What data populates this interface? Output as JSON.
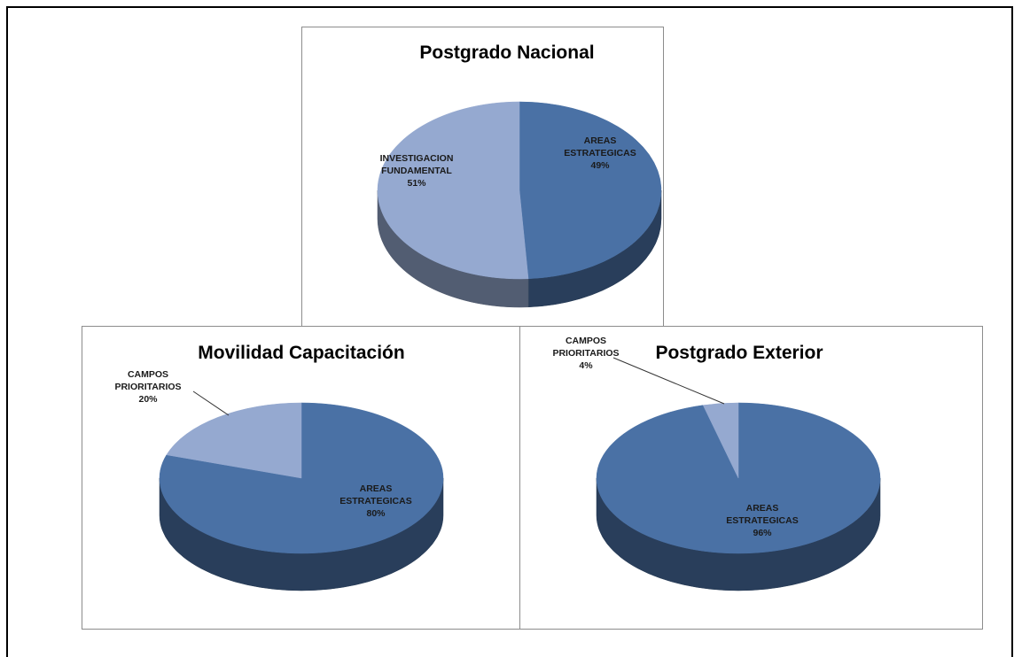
{
  "chart_data": [
    {
      "type": "pie",
      "title": "Postgrado Nacional",
      "categories": [
        "AREAS ESTRATEGICAS",
        "INVESTIGACION FUNDAMENTAL"
      ],
      "values": [
        49,
        51
      ],
      "value_labels": [
        "49%",
        "51%"
      ],
      "colors": [
        "#4a71a5",
        "#95a9d0"
      ]
    },
    {
      "type": "pie",
      "title": "Movilidad Capacitación",
      "categories": [
        "AREAS ESTRATEGICAS",
        "CAMPOS PRIORITARIOS"
      ],
      "values": [
        80,
        20
      ],
      "value_labels": [
        "80%",
        "20%"
      ],
      "colors": [
        "#4a71a5",
        "#95a9d0"
      ]
    },
    {
      "type": "pie",
      "title": "Postgrado Exterior",
      "categories": [
        "AREAS ESTRATEGICAS",
        "CAMPOS PRIORITARIOS"
      ],
      "values": [
        96,
        4
      ],
      "value_labels": [
        "96%",
        "4%"
      ],
      "colors": [
        "#4a71a5",
        "#95a9d0"
      ]
    }
  ]
}
